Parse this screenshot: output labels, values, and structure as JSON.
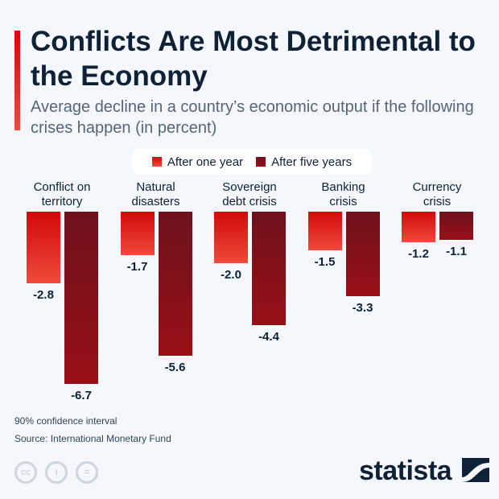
{
  "title": "Conflicts Are Most Detrimental to the Economy",
  "subtitle": "Average decline in a country’s economic output if the following crises happen (in percent)",
  "colors": {
    "one_year": "#e0120f",
    "five_years": "#8a1018",
    "text": "#0f2137"
  },
  "chart_data": {
    "type": "bar",
    "categories": [
      "Conflict on territory",
      "Natural disasters",
      "Sovereign debt crisis",
      "Banking crisis",
      "Currency crisis"
    ],
    "category_lines": [
      [
        "Conflict on",
        "territory"
      ],
      [
        "Natural",
        "disasters"
      ],
      [
        "Sovereign",
        "debt crisis"
      ],
      [
        "Banking",
        "crisis"
      ],
      [
        "Currency",
        "crisis"
      ]
    ],
    "series": [
      {
        "name": "After one year",
        "values": [
          -2.8,
          -1.7,
          -2.0,
          -1.5,
          -1.2
        ],
        "labels": [
          "-2.8",
          "-1.7",
          "-2.0",
          "-1.5",
          "-1.2"
        ]
      },
      {
        "name": "After five years",
        "values": [
          -6.7,
          -5.6,
          -4.4,
          -3.3,
          -1.1
        ],
        "labels": [
          "-6.7",
          "-5.6",
          "-4.4",
          "-3.3",
          "-1.1"
        ]
      }
    ],
    "ylim": [
      -6.7,
      0
    ],
    "legend": "top-center",
    "grid": false
  },
  "footer": {
    "note": "90% confidence interval",
    "source": "Source: International Monetary Fund",
    "cc_icons": [
      "cc-icon",
      "attribution-icon",
      "no-derivatives-icon"
    ],
    "brand": "statista"
  }
}
